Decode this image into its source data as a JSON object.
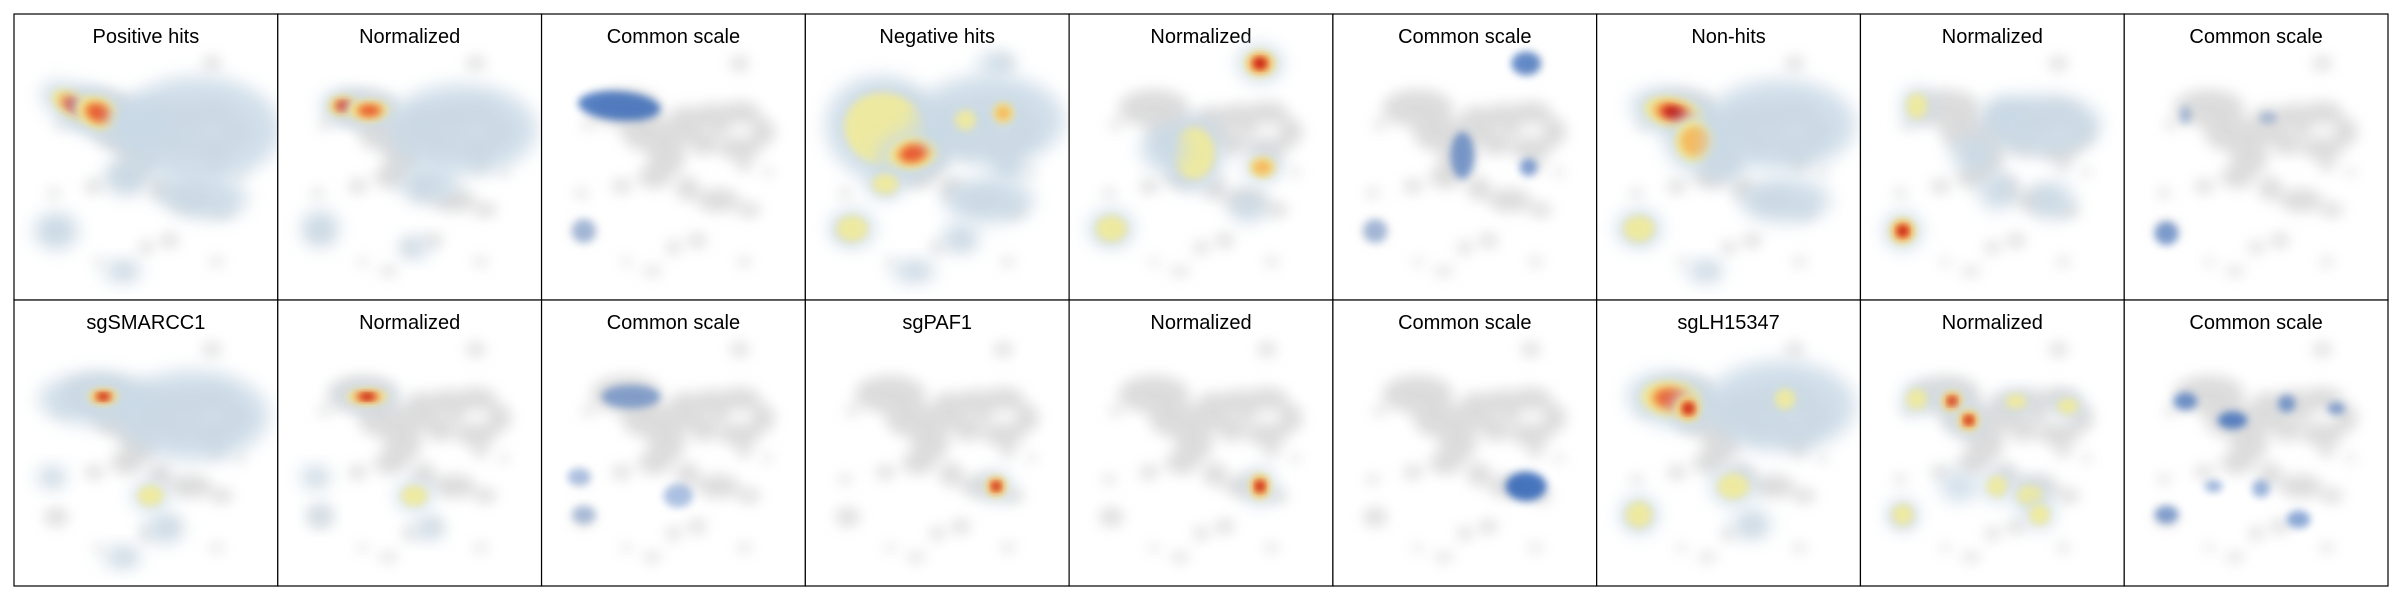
{
  "chart_data": {
    "type": "heatmap",
    "description_kind": "small-multiple density maps over a shared 2D embedding",
    "grid": {
      "rows": 2,
      "cols": 9
    },
    "colors": {
      "background_shape": "#d9d9d9",
      "common_scale": "#2c61b5",
      "normalized_ramp": [
        "#c9d9e6",
        "#f1eb9a",
        "#f6b85b",
        "#e8542f",
        "#b30000"
      ]
    },
    "panels": [
      {
        "title": "Positive hits",
        "scale": "normalized",
        "hotspots": [
          {
            "x": 0.2,
            "y": 0.22,
            "w": 0.1,
            "h": 0.05,
            "v": 1.0,
            "r": 1.3
          },
          {
            "x": 0.3,
            "y": 0.25,
            "w": 0.09,
            "h": 0.06,
            "v": 0.8,
            "r": 1.0
          },
          {
            "x": 0.48,
            "y": 0.3,
            "w": 0.09,
            "h": 0.07,
            "v": 0.25,
            "r": 0
          },
          {
            "x": 0.72,
            "y": 0.32,
            "w": 0.22,
            "h": 0.14,
            "v": 0.25,
            "r": 0
          },
          {
            "x": 0.74,
            "y": 0.6,
            "w": 0.12,
            "h": 0.06,
            "v": 0.3,
            "r": 0.3
          },
          {
            "x": 0.42,
            "y": 0.52,
            "w": 0.06,
            "h": 0.05,
            "v": 0.25,
            "r": 0
          },
          {
            "x": 0.12,
            "y": 0.75,
            "w": 0.06,
            "h": 0.05,
            "v": 0.3,
            "r": 0
          },
          {
            "x": 0.4,
            "y": 0.92,
            "w": 0.05,
            "h": 0.03,
            "v": 0.2,
            "r": 0
          }
        ]
      },
      {
        "title": "Normalized",
        "scale": "normalized",
        "hotspots": [
          {
            "x": 0.22,
            "y": 0.22,
            "w": 0.06,
            "h": 0.04,
            "v": 1.0,
            "r": 0
          },
          {
            "x": 0.33,
            "y": 0.24,
            "w": 0.08,
            "h": 0.04,
            "v": 0.85,
            "r": 0
          },
          {
            "x": 0.72,
            "y": 0.32,
            "w": 0.2,
            "h": 0.12,
            "v": 0.2,
            "r": 0
          },
          {
            "x": 0.58,
            "y": 0.55,
            "w": 0.08,
            "h": 0.05,
            "v": 0.25,
            "r": 0
          },
          {
            "x": 0.12,
            "y": 0.74,
            "w": 0.05,
            "h": 0.05,
            "v": 0.3,
            "r": 0
          },
          {
            "x": 0.52,
            "y": 0.82,
            "w": 0.04,
            "h": 0.03,
            "v": 0.35,
            "r": 0
          }
        ]
      },
      {
        "title": "Common scale",
        "scale": "common",
        "hotspots": [
          {
            "x": 0.27,
            "y": 0.22,
            "w": 0.14,
            "h": 0.05,
            "v": 0.9,
            "r": 0.2
          },
          {
            "x": 0.12,
            "y": 0.75,
            "w": 0.04,
            "h": 0.04,
            "v": 0.3,
            "r": 0
          }
        ]
      },
      {
        "title": "Negative hits",
        "scale": "normalized",
        "hotspots": [
          {
            "x": 0.28,
            "y": 0.32,
            "w": 0.16,
            "h": 0.14,
            "v": 0.55,
            "r": 0.8
          },
          {
            "x": 0.4,
            "y": 0.42,
            "w": 0.1,
            "h": 0.06,
            "v": 0.9,
            "r": -0.6
          },
          {
            "x": 0.72,
            "y": 0.28,
            "w": 0.2,
            "h": 0.12,
            "v": 0.35,
            "r": 0
          },
          {
            "x": 0.78,
            "y": 0.25,
            "w": 0.04,
            "h": 0.04,
            "v": 0.65,
            "r": 0
          },
          {
            "x": 0.62,
            "y": 0.28,
            "w": 0.04,
            "h": 0.04,
            "v": 0.6,
            "r": 0
          },
          {
            "x": 0.75,
            "y": 0.04,
            "w": 0.05,
            "h": 0.03,
            "v": 0.3,
            "r": 0
          },
          {
            "x": 0.8,
            "y": 0.48,
            "w": 0.05,
            "h": 0.04,
            "v": 0.3,
            "r": 0
          },
          {
            "x": 0.72,
            "y": 0.62,
            "w": 0.12,
            "h": 0.06,
            "v": 0.3,
            "r": 0
          },
          {
            "x": 0.14,
            "y": 0.74,
            "w": 0.06,
            "h": 0.05,
            "v": 0.6,
            "r": 0
          },
          {
            "x": 0.28,
            "y": 0.55,
            "w": 0.05,
            "h": 0.04,
            "v": 0.45,
            "r": 0
          },
          {
            "x": 0.6,
            "y": 0.78,
            "w": 0.05,
            "h": 0.04,
            "v": 0.3,
            "r": 0
          },
          {
            "x": 0.4,
            "y": 0.92,
            "w": 0.06,
            "h": 0.03,
            "v": 0.3,
            "r": 0
          }
        ]
      },
      {
        "title": "Normalized",
        "scale": "normalized",
        "hotspots": [
          {
            "x": 0.75,
            "y": 0.04,
            "w": 0.06,
            "h": 0.05,
            "v": 1.0,
            "r": 0
          },
          {
            "x": 0.47,
            "y": 0.42,
            "w": 0.08,
            "h": 0.1,
            "v": 0.55,
            "r": 0
          },
          {
            "x": 0.76,
            "y": 0.48,
            "w": 0.05,
            "h": 0.04,
            "v": 0.75,
            "r": 0
          },
          {
            "x": 0.34,
            "y": 0.4,
            "w": 0.06,
            "h": 0.06,
            "v": 0.25,
            "r": 0
          },
          {
            "x": 0.12,
            "y": 0.74,
            "w": 0.06,
            "h": 0.05,
            "v": 0.55,
            "r": 0
          },
          {
            "x": 0.7,
            "y": 0.65,
            "w": 0.05,
            "h": 0.04,
            "v": 0.25,
            "r": 0
          }
        ]
      },
      {
        "title": "Common scale",
        "scale": "common",
        "hotspots": [
          {
            "x": 0.76,
            "y": 0.04,
            "w": 0.05,
            "h": 0.04,
            "v": 0.8,
            "r": 0
          },
          {
            "x": 0.49,
            "y": 0.43,
            "w": 0.04,
            "h": 0.08,
            "v": 0.6,
            "r": 0
          },
          {
            "x": 0.77,
            "y": 0.48,
            "w": 0.03,
            "h": 0.03,
            "v": 0.6,
            "r": 0
          },
          {
            "x": 0.12,
            "y": 0.75,
            "w": 0.04,
            "h": 0.04,
            "v": 0.3,
            "r": 0
          }
        ]
      },
      {
        "title": "Non-hits",
        "scale": "normalized",
        "hotspots": [
          {
            "x": 0.27,
            "y": 0.25,
            "w": 0.12,
            "h": 0.06,
            "v": 0.95,
            "r": 0.6
          },
          {
            "x": 0.36,
            "y": 0.37,
            "w": 0.08,
            "h": 0.08,
            "v": 0.7,
            "r": 0.8
          },
          {
            "x": 0.72,
            "y": 0.3,
            "w": 0.2,
            "h": 0.12,
            "v": 0.35,
            "r": 0
          },
          {
            "x": 0.74,
            "y": 0.62,
            "w": 0.12,
            "h": 0.06,
            "v": 0.35,
            "r": 0
          },
          {
            "x": 0.12,
            "y": 0.74,
            "w": 0.06,
            "h": 0.05,
            "v": 0.6,
            "r": 0
          },
          {
            "x": 0.48,
            "y": 0.45,
            "w": 0.06,
            "h": 0.06,
            "v": 0.3,
            "r": 0
          },
          {
            "x": 0.4,
            "y": 0.92,
            "w": 0.05,
            "h": 0.03,
            "v": 0.3,
            "r": 0
          }
        ]
      },
      {
        "title": "Normalized",
        "scale": "normalized",
        "hotspots": [
          {
            "x": 0.12,
            "y": 0.75,
            "w": 0.05,
            "h": 0.05,
            "v": 1.0,
            "r": 0
          },
          {
            "x": 0.18,
            "y": 0.22,
            "w": 0.04,
            "h": 0.05,
            "v": 0.5,
            "r": 0
          },
          {
            "x": 0.55,
            "y": 0.26,
            "w": 0.06,
            "h": 0.05,
            "v": 0.3,
            "r": 0
          },
          {
            "x": 0.42,
            "y": 0.42,
            "w": 0.06,
            "h": 0.05,
            "v": 0.3,
            "r": 0
          },
          {
            "x": 0.72,
            "y": 0.3,
            "w": 0.15,
            "h": 0.08,
            "v": 0.25,
            "r": 0
          },
          {
            "x": 0.52,
            "y": 0.58,
            "w": 0.05,
            "h": 0.05,
            "v": 0.3,
            "r": 0
          },
          {
            "x": 0.75,
            "y": 0.62,
            "w": 0.06,
            "h": 0.05,
            "v": 0.3,
            "r": 0
          }
        ]
      },
      {
        "title": "Common scale",
        "scale": "common",
        "hotspots": [
          {
            "x": 0.12,
            "y": 0.76,
            "w": 0.04,
            "h": 0.04,
            "v": 0.6,
            "r": 0
          },
          {
            "x": 0.2,
            "y": 0.26,
            "w": 0.02,
            "h": 0.03,
            "v": 0.25,
            "r": 0
          },
          {
            "x": 0.55,
            "y": 0.27,
            "w": 0.03,
            "h": 0.02,
            "v": 0.2,
            "r": 0
          }
        ]
      },
      {
        "title": "sgSMARCC1",
        "scale": "normalized",
        "hotspots": [
          {
            "x": 0.3,
            "y": 0.25,
            "w": 0.16,
            "h": 0.07,
            "v": 0.35,
            "r": 0
          },
          {
            "x": 0.32,
            "y": 0.24,
            "w": 0.06,
            "h": 0.03,
            "v": 1.0,
            "r": 0
          },
          {
            "x": 0.7,
            "y": 0.32,
            "w": 0.2,
            "h": 0.12,
            "v": 0.2,
            "r": 0
          },
          {
            "x": 0.52,
            "y": 0.66,
            "w": 0.05,
            "h": 0.04,
            "v": 0.55,
            "r": 0
          },
          {
            "x": 0.1,
            "y": 0.58,
            "w": 0.04,
            "h": 0.03,
            "v": 0.3,
            "r": 0
          },
          {
            "x": 0.4,
            "y": 0.92,
            "w": 0.05,
            "h": 0.03,
            "v": 0.25,
            "r": 0
          },
          {
            "x": 0.58,
            "y": 0.8,
            "w": 0.05,
            "h": 0.04,
            "v": 0.25,
            "r": 0
          }
        ]
      },
      {
        "title": "Normalized",
        "scale": "normalized",
        "hotspots": [
          {
            "x": 0.32,
            "y": 0.24,
            "w": 0.08,
            "h": 0.03,
            "v": 1.0,
            "r": 0
          },
          {
            "x": 0.52,
            "y": 0.66,
            "w": 0.05,
            "h": 0.04,
            "v": 0.5,
            "r": 0
          },
          {
            "x": 0.1,
            "y": 0.58,
            "w": 0.04,
            "h": 0.03,
            "v": 0.35,
            "r": 0
          },
          {
            "x": 0.58,
            "y": 0.8,
            "w": 0.04,
            "h": 0.03,
            "v": 0.3,
            "r": 0
          },
          {
            "x": 0.12,
            "y": 0.74,
            "w": 0.03,
            "h": 0.03,
            "v": 0.25,
            "r": 0
          }
        ]
      },
      {
        "title": "Common scale",
        "scale": "common",
        "hotspots": [
          {
            "x": 0.32,
            "y": 0.24,
            "w": 0.1,
            "h": 0.04,
            "v": 0.5,
            "r": 0
          },
          {
            "x": 0.52,
            "y": 0.66,
            "w": 0.05,
            "h": 0.04,
            "v": 0.35,
            "r": 0
          },
          {
            "x": 0.1,
            "y": 0.58,
            "w": 0.04,
            "h": 0.03,
            "v": 0.3,
            "r": 0
          },
          {
            "x": 0.12,
            "y": 0.74,
            "w": 0.04,
            "h": 0.03,
            "v": 0.25,
            "r": 0
          }
        ]
      },
      {
        "title": "sgPAF1",
        "scale": "normalized",
        "hotspots": [
          {
            "x": 0.75,
            "y": 0.62,
            "w": 0.04,
            "h": 0.04,
            "v": 1.0,
            "r": 0
          }
        ]
      },
      {
        "title": "Normalized",
        "scale": "normalized",
        "hotspots": [
          {
            "x": 0.75,
            "y": 0.62,
            "w": 0.04,
            "h": 0.05,
            "v": 1.0,
            "r": 0
          }
        ]
      },
      {
        "title": "Common scale",
        "scale": "common",
        "hotspots": [
          {
            "x": 0.76,
            "y": 0.62,
            "w": 0.07,
            "h": 0.05,
            "v": 1.0,
            "r": 0
          }
        ]
      },
      {
        "title": "sgLH15347",
        "scale": "normalized",
        "hotspots": [
          {
            "x": 0.26,
            "y": 0.25,
            "w": 0.12,
            "h": 0.07,
            "v": 0.85,
            "r": 0.3
          },
          {
            "x": 0.33,
            "y": 0.29,
            "w": 0.05,
            "h": 0.05,
            "v": 0.95,
            "r": 0
          },
          {
            "x": 0.72,
            "y": 0.28,
            "w": 0.2,
            "h": 0.12,
            "v": 0.35,
            "r": 0
          },
          {
            "x": 0.74,
            "y": 0.25,
            "w": 0.04,
            "h": 0.04,
            "v": 0.6,
            "r": 0
          },
          {
            "x": 0.52,
            "y": 0.62,
            "w": 0.06,
            "h": 0.05,
            "v": 0.45,
            "r": 0
          },
          {
            "x": 0.12,
            "y": 0.74,
            "w": 0.05,
            "h": 0.05,
            "v": 0.55,
            "r": 0
          },
          {
            "x": 0.6,
            "y": 0.78,
            "w": 0.05,
            "h": 0.04,
            "v": 0.3,
            "r": 0
          }
        ]
      },
      {
        "title": "Normalized",
        "scale": "normalized",
        "hotspots": [
          {
            "x": 0.18,
            "y": 0.25,
            "w": 0.04,
            "h": 0.04,
            "v": 0.6,
            "r": 0
          },
          {
            "x": 0.33,
            "y": 0.26,
            "w": 0.04,
            "h": 0.04,
            "v": 0.95,
            "r": 0
          },
          {
            "x": 0.4,
            "y": 0.34,
            "w": 0.04,
            "h": 0.04,
            "v": 1.0,
            "r": 0
          },
          {
            "x": 0.6,
            "y": 0.26,
            "w": 0.04,
            "h": 0.03,
            "v": 0.55,
            "r": 0
          },
          {
            "x": 0.82,
            "y": 0.28,
            "w": 0.04,
            "h": 0.03,
            "v": 0.55,
            "r": 0
          },
          {
            "x": 0.36,
            "y": 0.62,
            "w": 0.05,
            "h": 0.04,
            "v": 0.35,
            "r": 0
          },
          {
            "x": 0.52,
            "y": 0.62,
            "w": 0.04,
            "h": 0.04,
            "v": 0.5,
            "r": 0
          },
          {
            "x": 0.66,
            "y": 0.66,
            "w": 0.05,
            "h": 0.04,
            "v": 0.45,
            "r": 0
          },
          {
            "x": 0.7,
            "y": 0.74,
            "w": 0.04,
            "h": 0.04,
            "v": 0.55,
            "r": 0
          },
          {
            "x": 0.12,
            "y": 0.74,
            "w": 0.04,
            "h": 0.04,
            "v": 0.6,
            "r": 0
          }
        ]
      },
      {
        "title": "Common scale",
        "scale": "common",
        "hotspots": [
          {
            "x": 0.2,
            "y": 0.26,
            "w": 0.04,
            "h": 0.03,
            "v": 0.7,
            "r": 0
          },
          {
            "x": 0.4,
            "y": 0.34,
            "w": 0.05,
            "h": 0.03,
            "v": 0.85,
            "r": 0
          },
          {
            "x": 0.63,
            "y": 0.27,
            "w": 0.03,
            "h": 0.03,
            "v": 0.6,
            "r": 0
          },
          {
            "x": 0.84,
            "y": 0.29,
            "w": 0.03,
            "h": 0.02,
            "v": 0.55,
            "r": 0
          },
          {
            "x": 0.32,
            "y": 0.62,
            "w": 0.03,
            "h": 0.02,
            "v": 0.45,
            "r": 0
          },
          {
            "x": 0.52,
            "y": 0.63,
            "w": 0.03,
            "h": 0.03,
            "v": 0.45,
            "r": 0
          },
          {
            "x": 0.68,
            "y": 0.76,
            "w": 0.04,
            "h": 0.03,
            "v": 0.55,
            "r": 0
          },
          {
            "x": 0.12,
            "y": 0.74,
            "w": 0.04,
            "h": 0.03,
            "v": 0.55,
            "r": 0
          }
        ]
      }
    ]
  }
}
